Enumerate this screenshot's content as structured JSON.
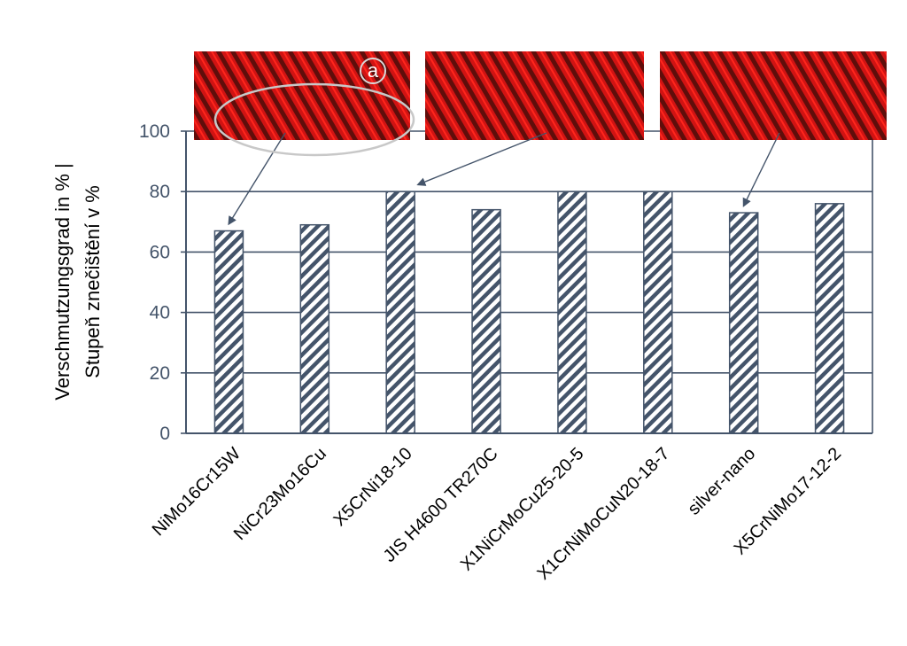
{
  "chart_data": {
    "type": "bar",
    "categories": [
      "NiMo16Cr15W",
      "NiCr23Mo16Cu",
      "X5CrNi18-10",
      "JIS H4600 TR270C",
      "X1NiCrMoCu25-20-5",
      "X1CrNiMoCuN20-18-7",
      "silver-nano",
      "X5CrNiMo17-12-2"
    ],
    "values": [
      67,
      69,
      80,
      74,
      80,
      80,
      73,
      76
    ],
    "ylabel_line1": "Verschmutzungsgrad in % |",
    "ylabel_line2": "Stupeň znečištění v %",
    "ylim": [
      0,
      100
    ],
    "yticks": [
      "0",
      "20",
      "40",
      "60",
      "80",
      "100"
    ],
    "grid": true,
    "bar_fill": "diagonal hatch",
    "bar_color": "#44546a",
    "inset_images": [
      {
        "label": "a",
        "arrow_to_category": "NiMo16Cr15W",
        "color": "#e0141a"
      },
      {
        "label": "",
        "arrow_to_category": "X5CrNi18-10",
        "color": "#e0141a"
      },
      {
        "label": "",
        "arrow_to_category": "silver-nano",
        "color": "#e0141a"
      }
    ]
  }
}
